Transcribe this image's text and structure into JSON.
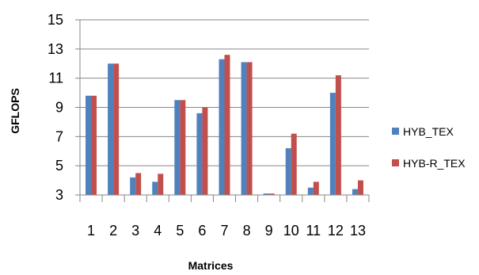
{
  "chart_data": {
    "type": "bar",
    "title": "",
    "xlabel": "Matrices",
    "ylabel": "GFLOPS",
    "ylim": [
      3,
      15
    ],
    "yticks": [
      3,
      5,
      7,
      9,
      11,
      13,
      15
    ],
    "grid": true,
    "legend_position": "right",
    "categories": [
      "1",
      "2",
      "3",
      "4",
      "5",
      "6",
      "7",
      "8",
      "9",
      "10",
      "11",
      "12",
      "13"
    ],
    "series": [
      {
        "name": "HYB_TEX",
        "color": "#4f81bd",
        "values": [
          9.8,
          12.0,
          4.2,
          3.9,
          9.5,
          8.6,
          12.3,
          12.1,
          3.1,
          6.2,
          3.5,
          10.0,
          3.4
        ]
      },
      {
        "name": "HYB-R_TEX",
        "color": "#c0504d",
        "values": [
          9.8,
          12.0,
          4.5,
          4.45,
          9.5,
          9.0,
          12.6,
          12.1,
          3.1,
          7.2,
          3.9,
          11.2,
          4.0
        ]
      }
    ]
  }
}
